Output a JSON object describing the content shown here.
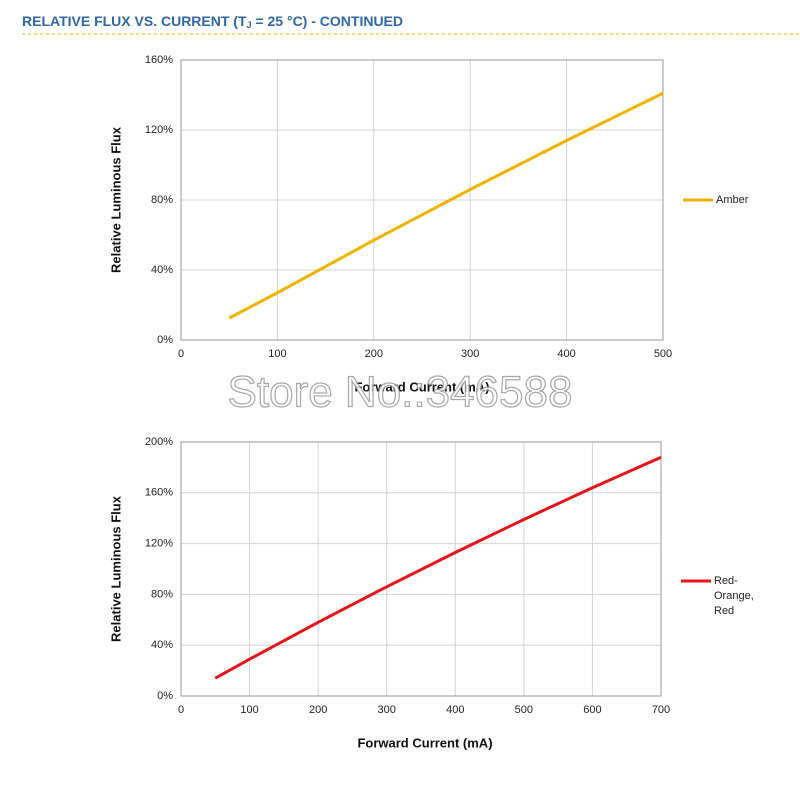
{
  "header": {
    "title": [
      "RELATIVE FLUX VS. CURRENT (T",
      "J",
      " = 25 °C) - CONTINUED"
    ]
  },
  "watermark": "Store No.:346588",
  "chart_data": [
    {
      "type": "line",
      "ylabel": "Relative Luminous Flux",
      "xlabel": "Forward Current (mA)",
      "x": [
        50,
        100,
        200,
        300,
        400,
        500
      ],
      "series": [
        {
          "name": "Amber",
          "color": "#f0b400",
          "values": [
            12.5,
            27,
            57,
            86,
            114,
            141
          ]
        }
      ],
      "xlim": [
        0,
        500
      ],
      "xticks": [
        0,
        100,
        200,
        300,
        400,
        500
      ],
      "ylim": [
        0,
        160
      ],
      "yticks": [
        {
          "value": 0,
          "label": "0%"
        },
        {
          "value": 40,
          "label": "40%"
        },
        {
          "value": 80,
          "label": "80%"
        },
        {
          "value": 120,
          "label": "120%"
        },
        {
          "value": 160,
          "label": "160%"
        }
      ],
      "grid": true,
      "legend": "right"
    },
    {
      "type": "line",
      "ylabel": "Relative Luminous Flux",
      "xlabel": "Forward Current (mA)",
      "x": [
        50,
        100,
        200,
        300,
        400,
        500,
        600,
        700
      ],
      "series": [
        {
          "name": "Red-Orange, Red",
          "color": "#e8141c",
          "values": [
            14,
            29,
            58,
            86,
            113,
            139,
            164,
            188
          ]
        }
      ],
      "xlim": [
        0,
        700
      ],
      "xticks": [
        0,
        100,
        200,
        300,
        400,
        500,
        600,
        700
      ],
      "ylim": [
        0,
        200
      ],
      "yticks": [
        {
          "value": 0,
          "label": "0%"
        },
        {
          "value": 40,
          "label": "40%"
        },
        {
          "value": 80,
          "label": "80%"
        },
        {
          "value": 120,
          "label": "120%"
        },
        {
          "value": 160,
          "label": "160%"
        },
        {
          "value": 200,
          "label": "200%"
        }
      ],
      "grid": true,
      "legend": "right"
    }
  ]
}
